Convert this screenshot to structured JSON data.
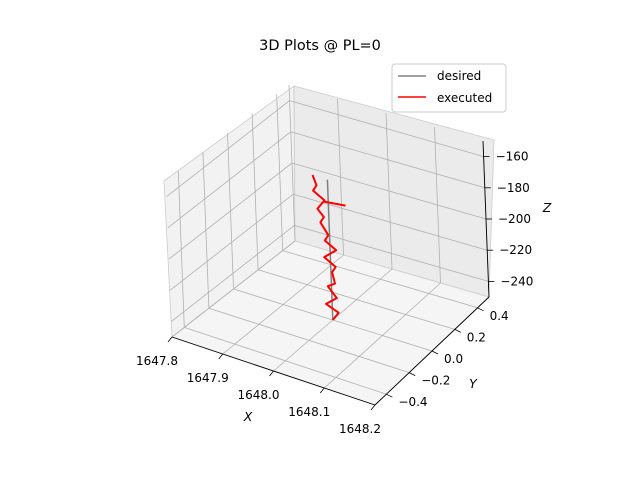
{
  "chart_data": {
    "type": "line",
    "projection": "3d",
    "title": "3D Plots @ PL=0",
    "xlabel": "X",
    "ylabel": "Y",
    "zlabel": "Z",
    "xlim": [
      1647.8,
      1648.2
    ],
    "ylim": [
      -0.5,
      0.5
    ],
    "zlim": [
      -250,
      -150
    ],
    "x_ticks": [
      "1647.8",
      "1647.9",
      "1648.0",
      "1648.1",
      "1648.2"
    ],
    "y_ticks": [
      "−0.4",
      "−0.2",
      "0.0",
      "0.2",
      "0.4"
    ],
    "z_ticks": [
      "−160",
      "−180",
      "−200",
      "−220",
      "−240"
    ],
    "grid": true,
    "legend": {
      "location": "upper right",
      "entries": [
        "desired",
        "executed"
      ]
    },
    "colors": {
      "desired": "#808080",
      "executed": "#ff0000"
    },
    "series": [
      {
        "name": "desired",
        "color": "#808080",
        "points": [
          {
            "x": 1648.0,
            "y": 0.0,
            "z": -250
          },
          {
            "x": 1648.0,
            "y": 0.0,
            "z": -160
          }
        ]
      },
      {
        "name": "executed",
        "color": "#ff0000",
        "points": [
          {
            "x": 1648.0,
            "y": 0.0,
            "z": -250
          },
          {
            "x": 1648.01,
            "y": 0.01,
            "z": -245
          },
          {
            "x": 1647.99,
            "y": -0.01,
            "z": -240
          },
          {
            "x": 1648.01,
            "y": 0.0,
            "z": -235
          },
          {
            "x": 1647.99,
            "y": 0.01,
            "z": -230
          },
          {
            "x": 1648.01,
            "y": -0.01,
            "z": -225
          },
          {
            "x": 1648.0,
            "y": 0.01,
            "z": -220
          },
          {
            "x": 1648.01,
            "y": 0.0,
            "z": -215
          },
          {
            "x": 1647.99,
            "y": -0.01,
            "z": -210
          },
          {
            "x": 1648.01,
            "y": 0.01,
            "z": -205
          },
          {
            "x": 1647.99,
            "y": 0.0,
            "z": -200
          },
          {
            "x": 1648.0,
            "y": -0.01,
            "z": -195
          },
          {
            "x": 1647.98,
            "y": 0.01,
            "z": -190
          },
          {
            "x": 1647.99,
            "y": 0.0,
            "z": -185
          },
          {
            "x": 1647.98,
            "y": -0.01,
            "z": -180
          },
          {
            "x": 1647.99,
            "y": 0.01,
            "z": -175
          },
          {
            "x": 1647.97,
            "y": 0.0,
            "z": -170
          },
          {
            "x": 1647.98,
            "y": -0.01,
            "z": -165
          },
          {
            "x": 1647.97,
            "y": 0.0,
            "z": -160
          }
        ]
      },
      {
        "name": "executed",
        "color": "#ff0000",
        "points": [
          {
            "x": 1647.99,
            "y": 0.0,
            "z": -175
          },
          {
            "x": 1648.03,
            "y": 0.02,
            "z": -175
          }
        ]
      }
    ]
  }
}
